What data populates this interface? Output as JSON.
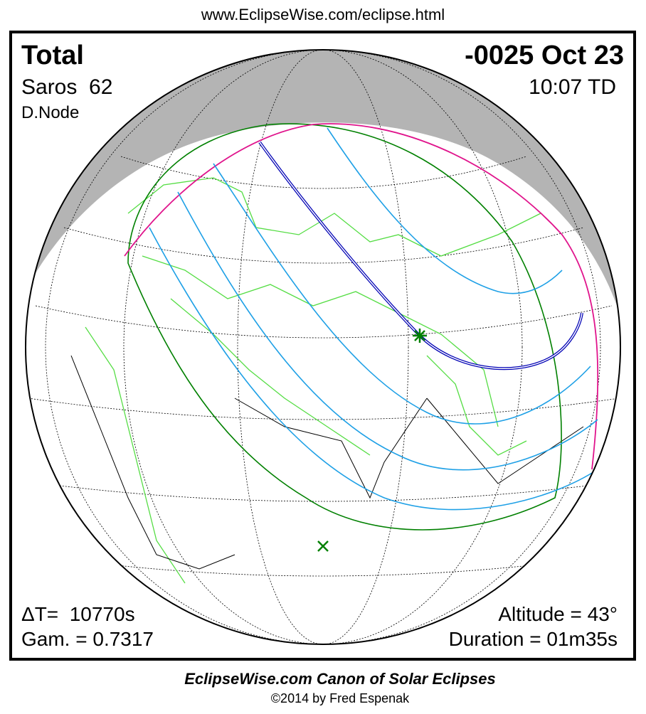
{
  "header": {
    "url": "www.EclipseWise.com/eclipse.html"
  },
  "panel": {
    "type": "Total",
    "date": "-0025 Oct 23",
    "saros": "Saros  62",
    "time": "10:07 TD",
    "node": "D.Node",
    "delta_t": "ΔT=  10770s",
    "gamma": "Gam. = 0.7317",
    "altitude": "Altitude = 43°",
    "duration": "Duration = 01m35s"
  },
  "footer": {
    "title": "EclipseWise.com Canon of Solar Eclipses",
    "copyright": "©2014 by Fred Espenak"
  }
}
